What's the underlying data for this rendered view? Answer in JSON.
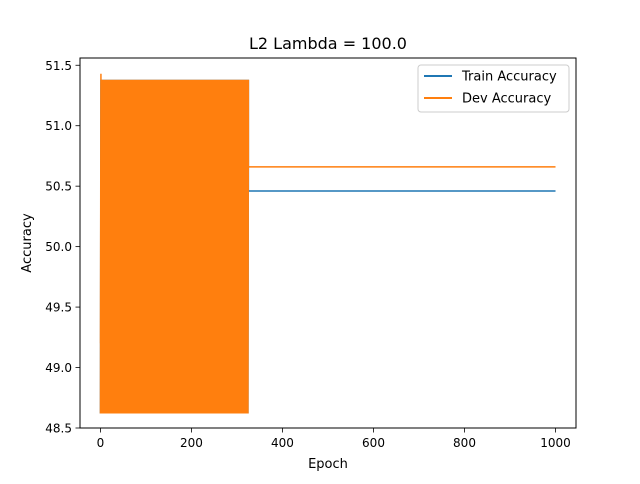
{
  "chart_data": {
    "type": "line",
    "title": "L2 Lambda = 100.0",
    "xlabel": "Epoch",
    "ylabel": "Accuracy",
    "xlim": [
      -45,
      1045
    ],
    "ylim": [
      48.5,
      51.56
    ],
    "xticks": [
      0,
      200,
      400,
      600,
      800,
      1000
    ],
    "yticks": [
      48.5,
      49.0,
      49.5,
      50.0,
      50.5,
      51.0,
      51.5
    ],
    "xtick_labels": [
      "0",
      "200",
      "400",
      "600",
      "800",
      "1000"
    ],
    "ytick_labels": [
      "48.5",
      "49.0",
      "49.5",
      "50.0",
      "50.5",
      "51.0",
      "51.5"
    ],
    "grid": false,
    "legend_position": "top-right",
    "series": [
      {
        "name": "Train Accuracy",
        "color": "#1f77b4",
        "oscillation": {
          "x_start": 0,
          "x_end": 325,
          "low": 48.62,
          "high": 51.38
        },
        "steady": {
          "x_start": 325,
          "x_end": 1000,
          "value": 50.46
        }
      },
      {
        "name": "Dev Accuracy",
        "color": "#ff7f0e",
        "initial_points": [
          [
            0,
            49.2
          ],
          [
            1,
            51.43
          ]
        ],
        "oscillation": {
          "x_start": 0,
          "x_end": 325,
          "low": 48.62,
          "high": 51.38
        },
        "steady": {
          "x_start": 325,
          "x_end": 1000,
          "value": 50.66
        }
      }
    ]
  }
}
